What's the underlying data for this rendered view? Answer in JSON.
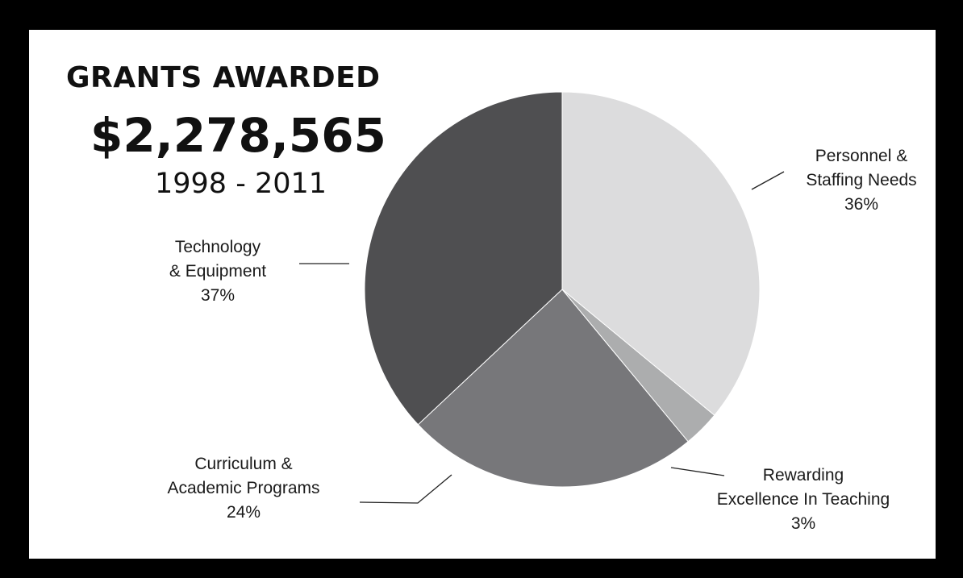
{
  "header": {
    "title": "GRANTS AWARDED",
    "total": "$2,278,565",
    "period": "1998 - 2011"
  },
  "chart_data": {
    "type": "pie",
    "title": "GRANTS AWARDED",
    "start_angle_deg": 0,
    "direction": "clockwise",
    "slices": [
      {
        "lines": [
          "Personnel &",
          "Staffing Needs",
          "36%"
        ],
        "value": 36,
        "color": "#dcdcdd"
      },
      {
        "lines": [
          "Rewarding",
          "Excellence In Teaching",
          "3%"
        ],
        "value": 3,
        "color": "#acadae"
      },
      {
        "lines": [
          "Curriculum &",
          "Academic Programs",
          "24%"
        ],
        "value": 24,
        "color": "#77777a"
      },
      {
        "lines": [
          "Technology",
          "& Equipment",
          "37%"
        ],
        "value": 37,
        "color": "#4f4f51"
      }
    ]
  }
}
